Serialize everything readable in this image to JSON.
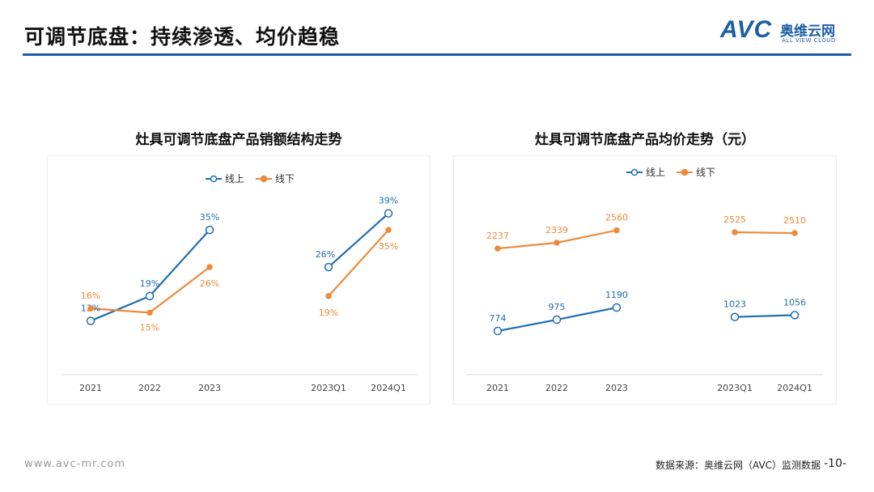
{
  "header": {
    "title": "可调节底盘：持续渗透、均价趋稳",
    "logo_mark": "AVC",
    "logo_cn": "奥维云网",
    "logo_en": "ALL VIEW CLOUD"
  },
  "footer": {
    "url": "www.avc-mr.com",
    "source": "数据来源：奥维云网（AVC）监测数据",
    "page": "-10-"
  },
  "colors": {
    "online": "#1f6db3",
    "offline": "#ed8a3c",
    "accent": "#1d5fa6"
  },
  "chart_data": [
    {
      "type": "line",
      "title": "灶具可调节底盘产品销额结构走势",
      "categories": [
        "2021",
        "2022",
        "2023",
        "2023Q1",
        "2024Q1"
      ],
      "groups": [
        [
          0,
          1,
          2
        ],
        [
          3,
          4
        ]
      ],
      "series": [
        {
          "name": "线上",
          "values": [
            13,
            19,
            35,
            26,
            39
          ],
          "labels": [
            "13%",
            "19%",
            "35%",
            "26%",
            "39%"
          ]
        },
        {
          "name": "线下",
          "values": [
            16,
            15,
            26,
            19,
            35
          ],
          "labels": [
            "16%",
            "15%",
            "26%",
            "19%",
            "35%"
          ]
        }
      ],
      "unit": "%",
      "ylim": [
        0,
        45
      ],
      "grid": false,
      "legend": "top"
    },
    {
      "type": "line",
      "title": "灶具可调节底盘产品均价走势（元）",
      "categories": [
        "2021",
        "2022",
        "2023",
        "2023Q1",
        "2024Q1"
      ],
      "groups": [
        [
          0,
          1,
          2
        ],
        [
          3,
          4
        ]
      ],
      "series": [
        {
          "name": "线上",
          "values": [
            774,
            975,
            1190,
            1023,
            1056
          ],
          "labels": [
            "774",
            "975",
            "1190",
            "1023",
            "1056"
          ]
        },
        {
          "name": "线下",
          "values": [
            2237,
            2339,
            2560,
            2525,
            2510
          ],
          "labels": [
            "2237",
            "2339",
            "2560",
            "2525",
            "2510"
          ]
        }
      ],
      "ylim": [
        0,
        3300
      ],
      "grid": false,
      "legend": "top"
    }
  ]
}
